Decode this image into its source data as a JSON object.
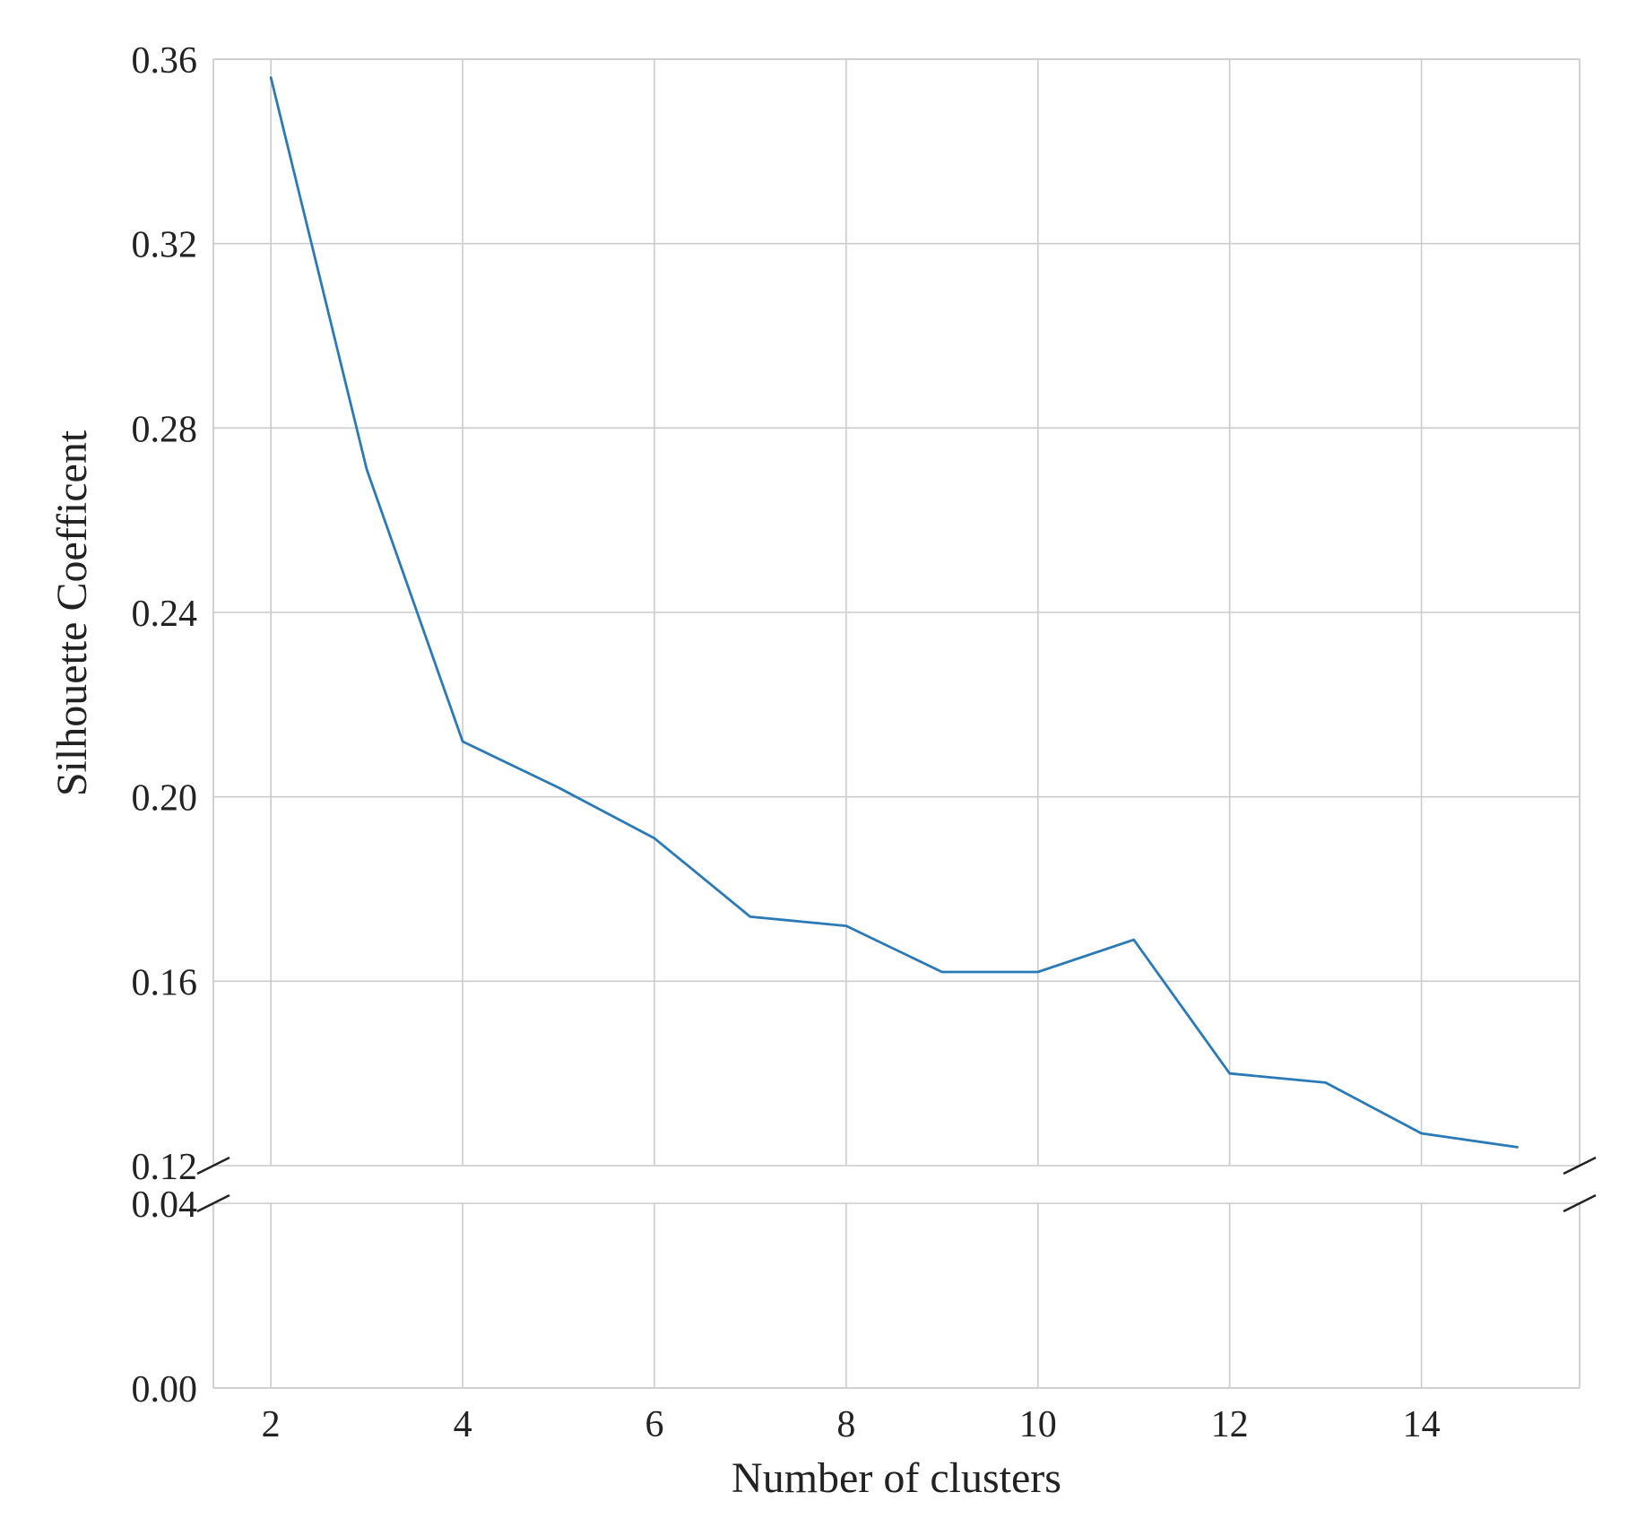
{
  "chart_data": {
    "type": "line",
    "title": "",
    "xlabel": "Number of clusters",
    "ylabel": "Silhouette Coefficent",
    "x": [
      2,
      3,
      4,
      5,
      6,
      7,
      8,
      9,
      10,
      11,
      12,
      13,
      14,
      15
    ],
    "series": [
      {
        "color": "#2a7ab8",
        "values": [
          0.356,
          0.271,
          0.212,
          0.202,
          0.191,
          0.174,
          0.172,
          0.162,
          0.162,
          0.169,
          0.14,
          0.138,
          0.127,
          0.124
        ]
      }
    ],
    "xlim": [
      1.4,
      15.65
    ],
    "x_ticks": [
      2,
      4,
      6,
      8,
      10,
      12,
      14
    ],
    "x_tick_labels": [
      "2",
      "4",
      "6",
      "8",
      "10",
      "12",
      "14"
    ],
    "broken_y_axis": true,
    "upper_panel": {
      "ylim": [
        0.12,
        0.36
      ],
      "y_ticks": [
        0.12,
        0.16,
        0.2,
        0.24,
        0.28,
        0.32,
        0.36
      ],
      "y_tick_labels": [
        "0.12",
        "0.16",
        "0.20",
        "0.24",
        "0.28",
        "0.32",
        "0.36"
      ]
    },
    "lower_panel": {
      "ylim": [
        0.0,
        0.04
      ],
      "y_ticks": [
        0.0,
        0.04
      ],
      "y_tick_labels": [
        "0.00",
        "0.04"
      ]
    },
    "grid": true,
    "legend": "none"
  }
}
